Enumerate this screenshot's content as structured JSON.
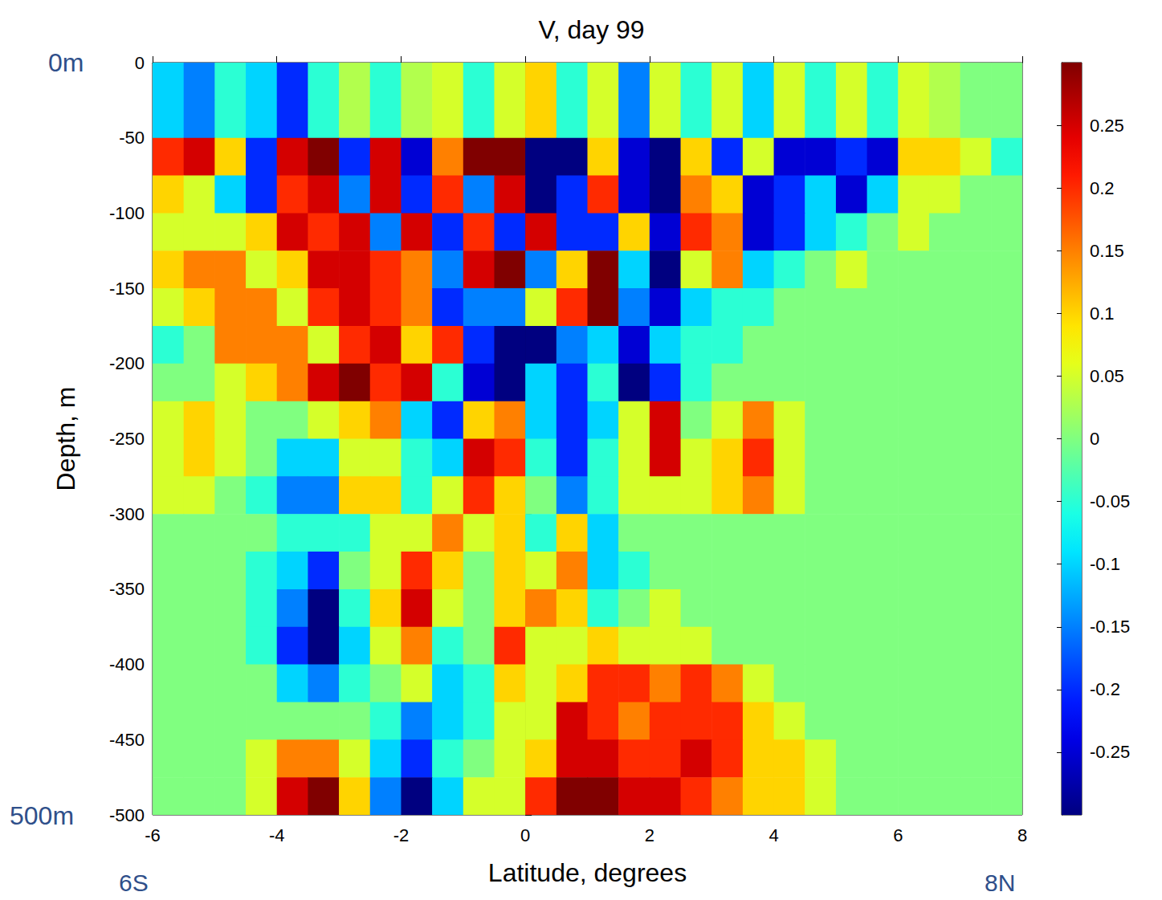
{
  "chart_data": {
    "type": "heatmap",
    "title": "V, day 99",
    "x_label": "Latitude, degrees",
    "y_label": "Depth, m",
    "xlim": [
      -6,
      8
    ],
    "xticks": [
      -6,
      -4,
      -2,
      0,
      2,
      4,
      6,
      8
    ],
    "ylim": [
      -500,
      0
    ],
    "yticks": [
      -500,
      -450,
      -400,
      -350,
      -300,
      -250,
      -200,
      -150,
      -100,
      -50,
      0
    ],
    "grid": false,
    "x_edges": [
      -6,
      -5.5,
      -5,
      -4.5,
      -4,
      -3.5,
      -3,
      -2.5,
      -2,
      -1.5,
      -1,
      -0.5,
      0,
      0.5,
      1,
      1.5,
      2,
      2.5,
      3,
      3.5,
      4,
      4.5,
      5,
      5.5,
      6,
      6.5,
      7,
      7.5,
      8
    ],
    "y_edges": [
      0,
      -25,
      -50,
      -75,
      -100,
      -125,
      -150,
      -175,
      -200,
      -225,
      -250,
      -275,
      -300,
      -325,
      -350,
      -375,
      -400,
      -425,
      -450,
      -475,
      -500
    ],
    "cells": [
      [
        -0.1,
        -0.15,
        -0.05,
        -0.1,
        -0.2,
        -0.05,
        0.03,
        -0.05,
        0.03,
        0.05,
        -0.05,
        0.05,
        0.1,
        -0.05,
        0.05,
        -0.15,
        0.05,
        -0.05,
        0.05,
        -0.1,
        0.05,
        -0.05,
        0.05,
        -0.05,
        0.05,
        0.03,
        0,
        0
      ],
      [
        -0.1,
        -0.15,
        -0.05,
        -0.1,
        -0.2,
        -0.05,
        0.03,
        -0.05,
        0.03,
        0.05,
        -0.05,
        0.05,
        0.1,
        -0.05,
        0.05,
        -0.15,
        0.05,
        -0.05,
        0.05,
        -0.1,
        0.05,
        -0.05,
        0.05,
        -0.05,
        0.05,
        0.03,
        0,
        0
      ],
      [
        0.2,
        0.25,
        0.1,
        -0.2,
        0.25,
        0.3,
        -0.2,
        0.25,
        -0.25,
        0.15,
        0.3,
        0.3,
        -0.3,
        -0.3,
        0.1,
        -0.25,
        -0.3,
        0.1,
        -0.2,
        0.05,
        -0.25,
        -0.25,
        -0.2,
        -0.25,
        0.1,
        0.1,
        0.05,
        -0.05
      ],
      [
        0.1,
        0.05,
        -0.1,
        -0.2,
        0.2,
        0.25,
        -0.15,
        0.25,
        -0.2,
        0.2,
        -0.15,
        0.25,
        -0.3,
        -0.2,
        0.2,
        -0.25,
        -0.3,
        0.15,
        0.1,
        -0.25,
        -0.2,
        -0.1,
        -0.25,
        -0.1,
        0.05,
        0.05,
        0,
        0
      ],
      [
        0.05,
        0.05,
        0.05,
        0.1,
        0.25,
        0.2,
        0.25,
        -0.15,
        0.25,
        -0.2,
        0.2,
        -0.2,
        0.25,
        -0.2,
        -0.2,
        0.1,
        -0.25,
        0.2,
        0.15,
        -0.25,
        -0.2,
        -0.1,
        -0.05,
        0,
        0.05,
        0,
        0,
        0
      ],
      [
        0.1,
        0.15,
        0.15,
        0.05,
        0.1,
        0.25,
        0.25,
        0.2,
        0.15,
        -0.15,
        0.25,
        0.3,
        -0.15,
        0.1,
        0.3,
        -0.1,
        -0.3,
        0.05,
        0.15,
        -0.1,
        -0.05,
        0,
        0.05,
        0,
        0,
        0,
        0,
        0
      ],
      [
        0.05,
        0.1,
        0.15,
        0.15,
        0.05,
        0.2,
        0.25,
        0.2,
        0.15,
        -0.2,
        -0.15,
        -0.15,
        0.05,
        0.2,
        0.3,
        -0.15,
        -0.25,
        -0.1,
        -0.05,
        -0.05,
        0,
        0,
        0,
        0,
        0,
        0,
        0,
        0
      ],
      [
        -0.05,
        0,
        0.15,
        0.15,
        0.15,
        0.05,
        0.2,
        0.25,
        0.1,
        0.2,
        -0.2,
        -0.3,
        -0.3,
        -0.15,
        -0.1,
        -0.25,
        -0.1,
        -0.05,
        -0.05,
        0,
        0,
        0,
        0,
        0,
        0,
        0,
        0,
        0
      ],
      [
        0,
        0,
        0.05,
        0.1,
        0.15,
        0.25,
        0.3,
        0.2,
        0.25,
        -0.05,
        -0.25,
        -0.3,
        -0.1,
        -0.2,
        -0.05,
        -0.3,
        -0.2,
        -0.05,
        0,
        0,
        0,
        0,
        0,
        0,
        0,
        0,
        0,
        0
      ],
      [
        0.05,
        0.1,
        0.05,
        0,
        0,
        0.05,
        0.1,
        0.15,
        -0.1,
        -0.2,
        0.1,
        0.15,
        -0.1,
        -0.2,
        -0.1,
        0.05,
        0.25,
        0,
        0.05,
        0.15,
        0.05,
        0,
        0,
        0,
        0,
        0,
        0,
        0
      ],
      [
        0.05,
        0.1,
        0.05,
        0,
        -0.1,
        -0.1,
        0.05,
        0.05,
        -0.05,
        -0.1,
        0.25,
        0.2,
        -0.05,
        -0.2,
        -0.05,
        0.05,
        0.25,
        0.05,
        0.1,
        0.2,
        0.05,
        0,
        0,
        0,
        0,
        0,
        0,
        0
      ],
      [
        0.05,
        0.05,
        0,
        -0.05,
        -0.15,
        -0.15,
        0.1,
        0.1,
        -0.05,
        0.05,
        0.2,
        0.1,
        0,
        -0.15,
        -0.05,
        0.05,
        0.05,
        0.05,
        0.1,
        0.15,
        0.05,
        0,
        0,
        0,
        0,
        0,
        0,
        0
      ],
      [
        0,
        0,
        0,
        0,
        -0.05,
        -0.05,
        -0.05,
        0.05,
        0.05,
        0.15,
        0.05,
        0.1,
        -0.05,
        0.1,
        -0.1,
        0,
        0,
        0,
        0,
        0,
        0,
        0,
        0,
        0,
        0,
        0,
        0,
        0
      ],
      [
        0,
        0,
        0,
        -0.05,
        -0.1,
        -0.2,
        0,
        0.05,
        0.2,
        0.1,
        0,
        0.1,
        0.05,
        0.15,
        -0.1,
        -0.05,
        0,
        0,
        0,
        0,
        0,
        0,
        0,
        0,
        0,
        0,
        0,
        0
      ],
      [
        0,
        0,
        0,
        -0.05,
        -0.15,
        -0.3,
        -0.05,
        0.1,
        0.25,
        0.05,
        0,
        0.1,
        0.15,
        0.1,
        -0.05,
        0,
        0.05,
        0,
        0,
        0,
        0,
        0,
        0,
        0,
        0,
        0,
        0,
        0
      ],
      [
        0,
        0,
        0,
        -0.05,
        -0.2,
        -0.3,
        -0.1,
        0.05,
        0.15,
        -0.05,
        0,
        0.2,
        0.05,
        0.05,
        0.1,
        0.05,
        0.05,
        0.05,
        0,
        0,
        0,
        0,
        0,
        0,
        0,
        0,
        0,
        0
      ],
      [
        0,
        0,
        0,
        0,
        -0.1,
        -0.15,
        -0.05,
        0,
        0.05,
        -0.1,
        -0.05,
        0.1,
        0.05,
        0.1,
        0.2,
        0.2,
        0.15,
        0.2,
        0.15,
        0.05,
        0,
        0,
        0,
        0,
        0,
        0,
        0,
        0
      ],
      [
        0,
        0,
        0,
        0,
        0,
        0,
        0,
        -0.05,
        -0.15,
        -0.1,
        -0.05,
        0.05,
        0.05,
        0.25,
        0.2,
        0.15,
        0.2,
        0.2,
        0.2,
        0.1,
        0.05,
        0,
        0,
        0,
        0,
        0,
        0,
        0
      ],
      [
        0,
        0,
        0,
        0.05,
        0.15,
        0.15,
        0.05,
        -0.1,
        -0.2,
        -0.05,
        0,
        0.05,
        0.1,
        0.25,
        0.25,
        0.2,
        0.2,
        0.25,
        0.2,
        0.1,
        0.1,
        0.05,
        0,
        0,
        0,
        0,
        0,
        0
      ],
      [
        0,
        0,
        0,
        0.05,
        0.25,
        0.3,
        0.1,
        -0.15,
        -0.3,
        -0.1,
        0.05,
        0.05,
        0.2,
        0.3,
        0.3,
        0.25,
        0.25,
        0.2,
        0.15,
        0.1,
        0.1,
        0.05,
        0,
        0,
        0,
        0,
        0,
        0
      ]
    ],
    "colorbar": {
      "range": [
        -0.3,
        0.3
      ],
      "ticks": [
        -0.25,
        -0.2,
        -0.15,
        -0.1,
        -0.05,
        0,
        0.05,
        0.1,
        0.15,
        0.2,
        0.25
      ]
    },
    "annotations": [
      "0m",
      "500m",
      "6S",
      "8N"
    ]
  }
}
